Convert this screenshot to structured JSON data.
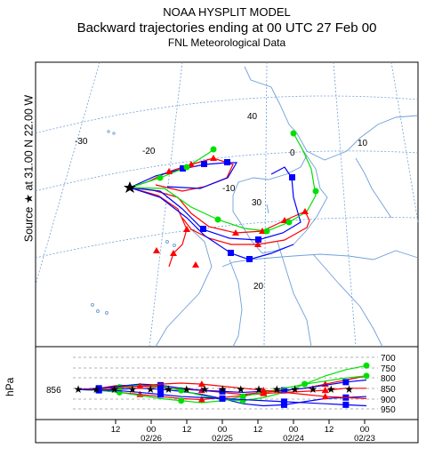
{
  "header": {
    "line1": "NOAA HYSPLIT MODEL",
    "line2": "Backward trajectories ending at 00 UTC 27 Feb 00",
    "line3": "FNL  Meteorological Data"
  },
  "source_label": "Source ★ at   31.00 N   22.00 W",
  "map": {
    "lon_labels": [
      "-30",
      "-20",
      "-10",
      "0",
      "10"
    ],
    "lat_labels": [
      "40",
      "30",
      "20"
    ]
  },
  "vertical_panel": {
    "ylabel": "hPa",
    "source_level": "856",
    "pressure_levels": [
      "700",
      "750",
      "800",
      "850",
      "900",
      "950"
    ],
    "hour_ticks": [
      "12",
      "00",
      "12",
      "00",
      "12",
      "00",
      "12",
      "00"
    ],
    "date_ticks": [
      "02/26",
      "02/25",
      "02/24",
      "02/23"
    ]
  },
  "colors": {
    "red": "#ff0000",
    "blue": "#0000ff",
    "green": "#00e000",
    "map_line": "#6f9fd8"
  },
  "chart_data": {
    "type": "line",
    "title": "Backward trajectories ending at 00 UTC 27 Feb 00",
    "source": {
      "lat": 31.0,
      "lon": -22.0,
      "level_hpa": 856
    },
    "series": [
      {
        "color": "red",
        "marker": "triangle",
        "level_hpa": [
          856,
          850,
          835,
          840,
          845,
          855,
          860,
          870,
          880,
          870,
          860,
          850,
          830,
          810,
          790
        ]
      },
      {
        "color": "blue",
        "marker": "square",
        "level_hpa": [
          856,
          860,
          855,
          850,
          855,
          865,
          880,
          900,
          925,
          935,
          930,
          915,
          900,
          895,
          890
        ]
      },
      {
        "color": "green",
        "marker": "circle",
        "level_hpa": [
          856,
          855,
          845,
          835,
          840,
          860,
          885,
          905,
          910,
          895,
          870,
          830,
          790,
          760,
          740
        ]
      },
      {
        "color": "red",
        "marker": "triangle",
        "level_hpa": [
          856,
          860,
          870,
          880,
          890,
          900,
          905,
          895,
          885,
          875,
          870,
          865,
          860,
          850,
          850
        ]
      },
      {
        "color": "blue",
        "marker": "square",
        "level_hpa": [
          856,
          850,
          840,
          830,
          835,
          850,
          860,
          865,
          870,
          865,
          860,
          850,
          835,
          820,
          810
        ]
      },
      {
        "color": "green",
        "marker": "circle",
        "level_hpa": [
          856,
          860,
          870,
          885,
          900,
          910,
          920,
          910,
          890,
          870,
          850,
          830,
          815,
          800,
          790
        ]
      },
      {
        "color": "red",
        "marker": "triangle",
        "level_hpa": [
          856,
          852,
          848,
          840,
          830,
          825,
          830,
          840,
          850,
          860,
          870,
          880,
          890,
          895,
          900
        ]
      },
      {
        "color": "blue",
        "marker": "square",
        "level_hpa": [
          856,
          858,
          862,
          870,
          880,
          890,
          895,
          900,
          905,
          910,
          915,
          920,
          925,
          930,
          935
        ]
      }
    ]
  }
}
